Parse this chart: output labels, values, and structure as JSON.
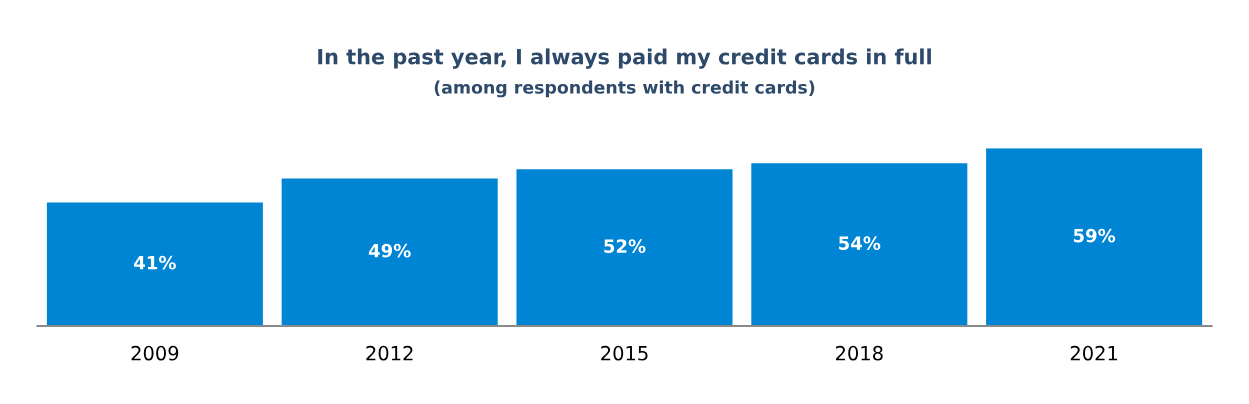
{
  "chart_data": {
    "type": "bar",
    "title": "In the past year, I always paid my credit cards in full",
    "subtitle": "(among respondents with credit cards)",
    "categories": [
      "2009",
      "2012",
      "2015",
      "2018",
      "2021"
    ],
    "values": [
      41,
      49,
      52,
      54,
      59
    ],
    "color": "#0084d4",
    "value_labels": [
      "41%",
      "49%",
      "52%",
      "54%",
      "59%"
    ],
    "tick_labels": "x",
    "grid": false,
    "legend": false
  }
}
